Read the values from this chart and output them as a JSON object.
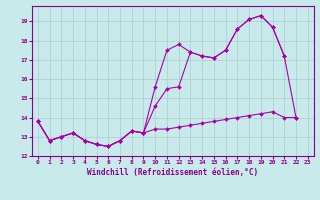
{
  "background_color": "#c8eaea",
  "grid_color": "#aacccc",
  "line_color": "#aa00aa",
  "xlabel": "Windchill (Refroidissement éolien,°C)",
  "xlim": [
    -0.5,
    23.5
  ],
  "ylim": [
    12,
    19.8
  ],
  "yticks": [
    12,
    13,
    14,
    15,
    16,
    17,
    18,
    19
  ],
  "xticks": [
    0,
    1,
    2,
    3,
    4,
    5,
    6,
    7,
    8,
    9,
    10,
    11,
    12,
    13,
    14,
    15,
    16,
    17,
    18,
    19,
    20,
    21,
    22,
    23
  ],
  "s1_x": [
    0,
    1,
    2,
    3,
    4,
    5,
    6,
    7,
    8,
    9,
    10,
    11,
    12,
    13,
    14,
    15,
    16,
    17,
    18,
    19,
    20,
    21
  ],
  "s1_y": [
    13.8,
    12.8,
    13.0,
    13.2,
    12.8,
    12.6,
    12.5,
    12.8,
    13.3,
    13.2,
    15.6,
    17.5,
    17.8,
    17.4,
    17.2,
    17.1,
    17.5,
    18.6,
    19.1,
    19.3,
    18.7,
    17.2
  ],
  "s2_x": [
    0,
    1,
    2,
    3,
    4,
    5,
    6,
    7,
    8,
    9,
    10,
    11,
    12,
    13,
    14,
    15,
    16,
    17,
    18,
    19,
    20,
    21,
    22
  ],
  "s2_y": [
    13.8,
    12.8,
    13.0,
    13.2,
    12.8,
    12.6,
    12.5,
    12.8,
    13.3,
    13.2,
    14.6,
    15.5,
    15.6,
    17.4,
    17.2,
    17.1,
    17.5,
    18.6,
    19.1,
    19.3,
    18.7,
    17.2,
    14.0
  ],
  "s3_x": [
    0,
    1,
    2,
    3,
    4,
    5,
    6,
    7,
    8,
    9,
    10,
    11,
    12,
    13,
    14,
    15,
    16,
    17,
    18,
    19,
    20,
    21,
    22
  ],
  "s3_y": [
    13.8,
    12.8,
    13.0,
    13.2,
    12.8,
    12.6,
    12.5,
    12.8,
    13.3,
    13.2,
    13.4,
    13.4,
    13.5,
    13.6,
    13.7,
    13.8,
    13.9,
    14.0,
    14.1,
    14.2,
    14.3,
    14.0,
    14.0
  ],
  "spine_color": "#880088",
  "tick_color": "#880088",
  "label_color": "#880088",
  "figsize": [
    3.2,
    2.0
  ],
  "dpi": 100
}
